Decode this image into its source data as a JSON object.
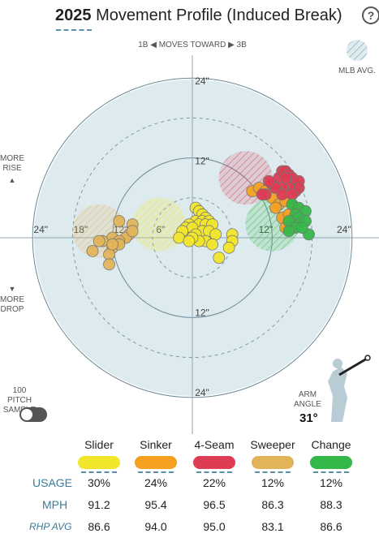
{
  "header": {
    "year": "2025",
    "title": "Movement Profile (Induced Break)",
    "help": "?"
  },
  "direction_label": "1B ◀  MOVES TOWARD  ▶ 3B",
  "mlb_avg_label": "MLB AVG.",
  "more_rise": "MORE\nRISE",
  "more_drop": "MORE\nDROP",
  "up_arrow": "▲",
  "down_arrow": "▼",
  "sample_toggle_label": "100 PITCH\nSAMPLE",
  "arm_angle": {
    "label": "ARM\nANGLE",
    "value": "31°"
  },
  "chart_data": {
    "type": "scatter",
    "title": "Movement Profile (Induced Break)",
    "ring_labels": [
      "24\"",
      "12\"",
      "12\"",
      "24\"",
      "24\"",
      "18\"",
      "12\"",
      "6\"",
      "12\"",
      "24\""
    ],
    "range_inches": 24,
    "series": [
      {
        "name": "Slider",
        "color": "#f2e62a",
        "mlb_avg": {
          "x": -5,
          "y": 2
        },
        "points": [
          [
            0.5,
            4.5
          ],
          [
            1,
            4
          ],
          [
            1.5,
            3.5
          ],
          [
            2,
            3
          ],
          [
            0.5,
            2.5
          ],
          [
            1.5,
            2.5
          ],
          [
            2.5,
            2.5
          ],
          [
            -0.5,
            2
          ],
          [
            1,
            2
          ],
          [
            2,
            2
          ],
          [
            3,
            2
          ],
          [
            -1,
            1.5
          ],
          [
            0,
            1.5
          ],
          [
            1.5,
            1
          ],
          [
            2.5,
            1
          ],
          [
            -1.5,
            1
          ],
          [
            0.5,
            0.5
          ],
          [
            3.5,
            0.5
          ],
          [
            2,
            -0.5
          ],
          [
            6,
            0.5
          ],
          [
            6,
            -0.5
          ],
          [
            5.5,
            -1.5
          ],
          [
            3,
            -1
          ],
          [
            1,
            -0.5
          ],
          [
            0,
            0
          ],
          [
            -2,
            0
          ],
          [
            -0.5,
            -0.5
          ],
          [
            4,
            -3
          ]
        ]
      },
      {
        "name": "Sinker",
        "color": "#f5a020",
        "mlb_avg": null,
        "points": [
          [
            9,
            7
          ],
          [
            10,
            7.5
          ],
          [
            11,
            7
          ],
          [
            12,
            6
          ],
          [
            13,
            5
          ],
          [
            14,
            5.5
          ],
          [
            15,
            5
          ],
          [
            15.5,
            4.5
          ],
          [
            13.5,
            3
          ],
          [
            14.5,
            3.5
          ],
          [
            15.5,
            2.5
          ],
          [
            14,
            1.5
          ],
          [
            15,
            1.5
          ],
          [
            16,
            2
          ],
          [
            12.5,
            4.5
          ]
        ]
      },
      {
        "name": "4-Seam",
        "color": "#dd3c52",
        "mlb_avg": {
          "x": 8,
          "y": 9
        },
        "points": [
          [
            12,
            8
          ],
          [
            13,
            9
          ],
          [
            13.5,
            10
          ],
          [
            14,
            10
          ],
          [
            14.5,
            9.5
          ],
          [
            15,
            9
          ],
          [
            15.5,
            8
          ],
          [
            16,
            8.5
          ],
          [
            16,
            7.5
          ],
          [
            15.5,
            7
          ],
          [
            14.5,
            7.5
          ],
          [
            13.5,
            7.5
          ],
          [
            12.5,
            7.5
          ],
          [
            11,
            6.5
          ],
          [
            13.5,
            6.5
          ],
          [
            15,
            6.5
          ],
          [
            14,
            9
          ],
          [
            11.5,
            8.5
          ],
          [
            10.5,
            6.5
          ]
        ]
      },
      {
        "name": "Sweeper",
        "color": "#e2b45a",
        "mlb_avg": {
          "x": -14,
          "y": 1
        },
        "points": [
          [
            -9,
            2
          ],
          [
            -11,
            2.5
          ],
          [
            -12,
            0
          ],
          [
            -12,
            -1.5
          ],
          [
            -12.5,
            -2.5
          ],
          [
            -13.5,
            -0.5
          ],
          [
            -14,
            -0.5
          ],
          [
            -9.5,
            0.5
          ],
          [
            -10,
            0
          ],
          [
            -11,
            -0.5
          ],
          [
            -11,
            -1
          ],
          [
            -12,
            -1
          ],
          [
            -9,
            1
          ],
          [
            -15,
            -2
          ],
          [
            -12.5,
            -4
          ]
        ]
      },
      {
        "name": "Change",
        "color": "#35b84a",
        "mlb_avg": {
          "x": 12,
          "y": 2
        },
        "points": [
          [
            15,
            5
          ],
          [
            16,
            4.5
          ],
          [
            17,
            4
          ],
          [
            15.5,
            3.5
          ],
          [
            16,
            3
          ],
          [
            16,
            2
          ],
          [
            17,
            2.5
          ],
          [
            14.5,
            2.5
          ],
          [
            15.5,
            1.5
          ],
          [
            17.5,
            0.5
          ],
          [
            14.5,
            1
          ],
          [
            16.5,
            1.5
          ]
        ]
      }
    ]
  },
  "pitch_table": {
    "pitches": [
      {
        "name": "Slider",
        "color": "#f2e62a",
        "usage": "30%",
        "mph": "91.2",
        "rhp_avg": "86.6"
      },
      {
        "name": "Sinker",
        "color": "#f5a020",
        "usage": "24%",
        "mph": "95.4",
        "rhp_avg": "94.0"
      },
      {
        "name": "4-Seam",
        "color": "#dd3c52",
        "usage": "22%",
        "mph": "96.5",
        "rhp_avg": "95.0"
      },
      {
        "name": "Sweeper",
        "color": "#e2b45a",
        "usage": "12%",
        "mph": "86.3",
        "rhp_avg": "83.1"
      },
      {
        "name": "Change",
        "color": "#35b84a",
        "usage": "12%",
        "mph": "88.3",
        "rhp_avg": "86.6"
      }
    ],
    "labels": {
      "usage": "USAGE",
      "mph": "MPH",
      "rhp_avg": "RHP AVG"
    }
  },
  "accent_color": "#3a7c9a"
}
